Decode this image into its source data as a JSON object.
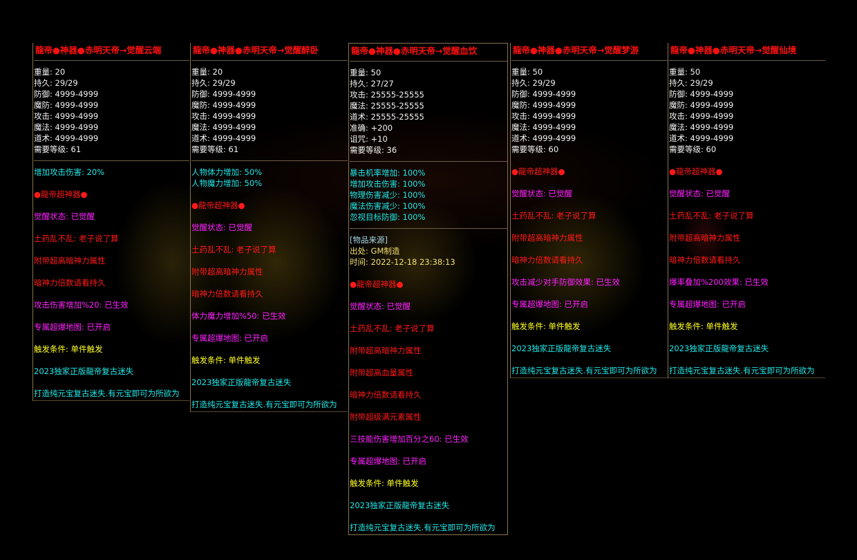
{
  "colors": {
    "title": "#ff1010",
    "stat": "#f4f4f4",
    "attr": "#22e8e8",
    "red": "#ff1a1a",
    "magenta": "#ff22ff",
    "yellow": "#ffff22"
  },
  "panels": [
    {
      "title": "龍帝●神器●赤明天帝→觉醒云端",
      "stats": [
        "重量: 20",
        "持久: 29/29",
        "防御: 4999-4999",
        "魔防: 4999-4999",
        "攻击: 4999-4999",
        "魔法: 4999-4999",
        "道术: 4999-4999",
        "需要等级: 61"
      ],
      "attrs": [
        "增加攻击伤害: 20%"
      ],
      "lines": [
        {
          "text": "●龍帝超神器●",
          "color": "red"
        },
        {
          "text": "觉醒状态: 已觉醒",
          "color": "magenta"
        },
        {
          "text": "土药乱不乱: 老子说了算",
          "color": "red"
        },
        {
          "text": "附带超高暗神力属性",
          "color": "red"
        },
        {
          "text": "暗神力倍数请看持久",
          "color": "red"
        },
        {
          "text": "攻击伤害增加%20: 已生效",
          "color": "magenta"
        },
        {
          "text": "专属超爆地图: 已开启",
          "color": "magenta"
        },
        {
          "text": "触发条件: 单件触发",
          "color": "yellow"
        },
        {
          "text": "2023独家正版龍帝复古迷失",
          "color": "cyan"
        },
        {
          "text": "打造纯元宝复古迷失.有元宝即可为所欲为",
          "color": "cyan"
        }
      ]
    },
    {
      "title": "龍帝●神器●赤明天帝→觉醒醉卧",
      "stats": [
        "重量: 20",
        "持久: 29/29",
        "防御: 4999-4999",
        "魔防: 4999-4999",
        "攻击: 4999-4999",
        "魔法: 4999-4999",
        "道术: 4999-4999",
        "需要等级: 61"
      ],
      "attrs": [
        "人物体力增加: 50%",
        "人物魔力增加: 50%"
      ],
      "lines": [
        {
          "text": "●龍帝超神器●",
          "color": "red"
        },
        {
          "text": "觉醒状态: 已觉醒",
          "color": "magenta"
        },
        {
          "text": "土药乱不乱: 老子说了算",
          "color": "red"
        },
        {
          "text": "附带超高暗神力属性",
          "color": "red"
        },
        {
          "text": "暗神力倍数请看持久",
          "color": "red"
        },
        {
          "text": "体力魔力增加%50: 已生效",
          "color": "magenta"
        },
        {
          "text": "专属超爆地图: 已开启",
          "color": "magenta"
        },
        {
          "text": "触发条件: 单件触发",
          "color": "yellow"
        },
        {
          "text": "2023独家正版龍帝复古迷失",
          "color": "cyan"
        },
        {
          "text": "打造纯元宝复古迷失.有元宝即可为所欲为",
          "color": "cyan"
        }
      ]
    },
    {
      "title": "龍帝●神器●赤明天帝→觉醒血饮",
      "stats": [
        "重量: 50",
        "持久: 27/27",
        "攻击: 25555-25555",
        "魔法: 25555-25555",
        "道术: 25555-25555",
        "准确: +200",
        "诅咒: +10",
        "需要等级: 36"
      ],
      "attrs": [
        "暴击机率增加: 100%",
        "增加攻击伤害: 100%",
        "物理伤害减少: 100%",
        "魔法伤害减少: 100%",
        "忽视目标防御: 100%"
      ],
      "source": {
        "heading": "[物品来源]",
        "origin": "出处: GM制造",
        "time": "时间: 2022-12-18 23:38:13"
      },
      "lines": [
        {
          "text": "●龍帝超神器●",
          "color": "red"
        },
        {
          "text": "觉醒状态: 已觉醒",
          "color": "magenta"
        },
        {
          "text": "土药乱不乱: 老子说了算",
          "color": "red"
        },
        {
          "text": "附带超高暗神力属性",
          "color": "red"
        },
        {
          "text": "附带超高血量属性",
          "color": "red"
        },
        {
          "text": "暗神力倍数请看持久",
          "color": "red"
        },
        {
          "text": "附带超级满元素属性",
          "color": "red"
        },
        {
          "text": "三技能伤害增加百分之60: 已生效",
          "color": "magenta"
        },
        {
          "text": "专属超爆地图: 已开启",
          "color": "magenta"
        },
        {
          "text": "触发条件: 单件触发",
          "color": "yellow"
        },
        {
          "text": "2023独家正版龍帝复古迷失",
          "color": "cyan"
        },
        {
          "text": "打造纯元宝复古迷失.有元宝即可为所欲为",
          "color": "cyan"
        }
      ]
    },
    {
      "title": "龍帝●神器●赤明天帝→觉醒梦游",
      "stats": [
        "重量: 50",
        "持久: 29/29",
        "防御: 4999-4999",
        "魔防: 4999-4999",
        "攻击: 4999-4999",
        "魔法: 4999-4999",
        "道术: 4999-4999",
        "需要等级: 60"
      ],
      "attrs": [],
      "lines": [
        {
          "text": "●龍帝超神器●",
          "color": "red"
        },
        {
          "text": "觉醒状态: 已觉醒",
          "color": "magenta"
        },
        {
          "text": "土药乱不乱: 老子说了算",
          "color": "red"
        },
        {
          "text": "附带超高暗神力属性",
          "color": "red"
        },
        {
          "text": "暗神力倍数请看持久",
          "color": "red"
        },
        {
          "text": "攻击减少对手防御效果: 已生效",
          "color": "magenta"
        },
        {
          "text": "专属超爆地图: 已开启",
          "color": "magenta"
        },
        {
          "text": "触发条件: 单件触发",
          "color": "yellow"
        },
        {
          "text": "2023独家正版龍帝复古迷失",
          "color": "cyan"
        },
        {
          "text": "打造纯元宝复古迷失.有元宝即可为所欲为",
          "color": "cyan"
        }
      ]
    },
    {
      "title": "龍帝●神器●赤明天帝→觉醒仙境",
      "stats": [
        "重量: 50",
        "持久: 29/29",
        "防御: 4999-4999",
        "魔防: 4999-4999",
        "攻击: 4999-4999",
        "魔法: 4999-4999",
        "道术: 4999-4999",
        "需要等级: 60"
      ],
      "attrs": [],
      "lines": [
        {
          "text": "●龍帝超神器●",
          "color": "red"
        },
        {
          "text": "觉醒状态: 已觉醒",
          "color": "magenta"
        },
        {
          "text": "土药乱不乱: 老子说了算",
          "color": "red"
        },
        {
          "text": "附带超高暗神力属性",
          "color": "red"
        },
        {
          "text": "暗神力倍数请看持久",
          "color": "red"
        },
        {
          "text": "爆率叠加%200效果: 已生效",
          "color": "magenta"
        },
        {
          "text": "专属超爆地图: 已开启",
          "color": "magenta"
        },
        {
          "text": "触发条件: 单件触发",
          "color": "yellow"
        },
        {
          "text": "2023独家正版龍帝复古迷失",
          "color": "cyan"
        },
        {
          "text": "打造纯元宝复古迷失.有元宝即可为所欲为",
          "color": "cyan"
        }
      ]
    }
  ]
}
